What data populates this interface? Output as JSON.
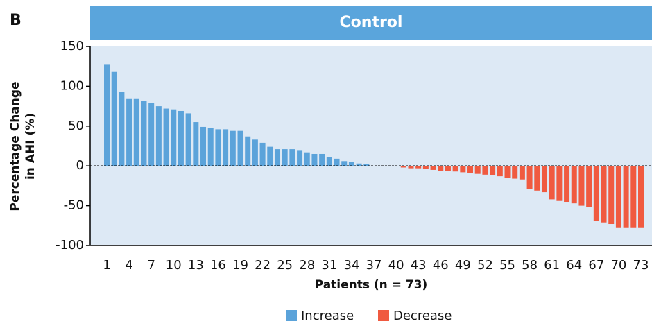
{
  "chart_data": {
    "type": "bar",
    "panel_label": "B",
    "title": "Control",
    "ylabel": [
      "Percentage Change",
      "in AHI (%)"
    ],
    "xlabel": "Patients (n = 73)",
    "categories": [
      "1",
      null,
      null,
      "4",
      null,
      null,
      "7",
      null,
      null,
      "10",
      null,
      null,
      "13",
      null,
      null,
      "16",
      null,
      null,
      "19",
      null,
      null,
      "22",
      null,
      null,
      "25",
      null,
      null,
      "28",
      null,
      null,
      "31",
      null,
      null,
      "34",
      null,
      null,
      "37",
      null,
      null,
      "40",
      null,
      null,
      "43",
      null,
      null,
      "46",
      null,
      null,
      "49",
      null,
      null,
      "52",
      null,
      null,
      "55",
      null,
      null,
      "58",
      null,
      null,
      "61",
      null,
      null,
      "64",
      null,
      null,
      "67",
      null,
      null,
      "70",
      null,
      null,
      "73"
    ],
    "series": [
      {
        "name": "Increase",
        "color": "#5ba3da",
        "values": [
          127,
          118,
          93,
          84,
          84,
          82,
          79,
          75,
          72,
          71,
          69,
          66,
          55,
          49,
          48,
          46,
          46,
          44,
          44,
          37,
          33,
          29,
          24,
          21,
          21,
          21,
          19,
          17,
          15,
          15,
          11,
          9,
          6,
          5,
          3,
          2,
          null,
          null,
          null,
          null,
          null,
          null,
          null,
          null,
          null,
          null,
          null,
          null,
          null,
          null,
          null,
          null,
          null,
          null,
          null,
          null,
          null,
          null,
          null,
          null,
          null,
          null,
          null,
          null,
          null,
          null,
          null,
          null,
          null,
          null,
          null,
          null,
          null
        ]
      },
      {
        "name": "Decrease",
        "color": "#f05a40",
        "values": [
          null,
          null,
          null,
          null,
          null,
          null,
          null,
          null,
          null,
          null,
          null,
          null,
          null,
          null,
          null,
          null,
          null,
          null,
          null,
          null,
          null,
          null,
          null,
          null,
          null,
          null,
          null,
          null,
          null,
          null,
          null,
          null,
          null,
          null,
          null,
          null,
          null,
          null,
          null,
          null,
          -2,
          -3,
          -3,
          -4,
          -5,
          -6,
          -6,
          -7,
          -8,
          -9,
          -10,
          -11,
          -12,
          -13,
          -15,
          -16,
          -17,
          -29,
          -31,
          -33,
          -42,
          -44,
          -46,
          -47,
          -50,
          -52,
          -69,
          -71,
          -73,
          -78,
          -78,
          -78,
          -78
        ]
      }
    ],
    "ylim": [
      -100,
      150
    ],
    "yticks": [
      -100,
      -50,
      0,
      50,
      100,
      150
    ]
  }
}
